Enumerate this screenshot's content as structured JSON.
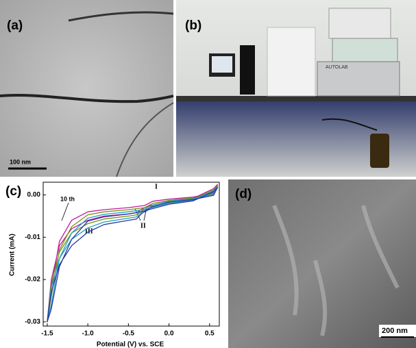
{
  "panels": {
    "a": {
      "label": "(a)",
      "scale_bar": "100 nm"
    },
    "b": {
      "label": "(b)",
      "device_label": "AUTOLAB"
    },
    "c": {
      "label": "(c)"
    },
    "d": {
      "label": "(d)",
      "scale_bar": "200 nm"
    }
  },
  "chart_data": {
    "type": "line",
    "x_label": "Potential (V) vs. SCE",
    "y_label": "Current (mA)",
    "annotations": [
      "10 th",
      "I",
      "II",
      "III"
    ],
    "x": [
      0.6,
      0.55,
      0.3,
      0,
      -0.2,
      -0.3,
      -0.5,
      -0.8,
      -1.0,
      -1.2,
      -1.35,
      -1.45,
      -1.5,
      -1.45,
      -1.35,
      -1.2,
      -1.0,
      -0.8,
      -0.5,
      -0.4,
      -0.33,
      -0.25,
      0,
      0.3,
      0.55,
      0.6
    ],
    "series": [
      {
        "color": "#c0189c",
        "values": [
          0.0025,
          0.0005,
          -0.0005,
          -0.001,
          -0.0015,
          -0.0025,
          -0.003,
          -0.0035,
          -0.004,
          -0.006,
          -0.011,
          -0.022,
          -0.03,
          -0.02,
          -0.012,
          -0.008,
          -0.006,
          -0.005,
          -0.0045,
          -0.0042,
          -0.0033,
          -0.0026,
          -0.0015,
          -0.0008,
          0.0015,
          0.0025
        ]
      },
      {
        "color": "#7a8c10",
        "values": [
          0.0022,
          0.0003,
          -0.0007,
          -0.0013,
          -0.002,
          -0.003,
          -0.0035,
          -0.004,
          -0.0047,
          -0.0075,
          -0.013,
          -0.024,
          -0.03,
          -0.021,
          -0.0135,
          -0.009,
          -0.0068,
          -0.0057,
          -0.005,
          -0.0047,
          -0.0037,
          -0.0029,
          -0.0018,
          -0.001,
          0.0012,
          0.0022
        ]
      },
      {
        "color": "#1aa0c0",
        "values": [
          0.002,
          0.0001,
          -0.0009,
          -0.0015,
          -0.0024,
          -0.0034,
          -0.004,
          -0.0046,
          -0.0055,
          -0.009,
          -0.015,
          -0.026,
          -0.03,
          -0.022,
          -0.015,
          -0.0105,
          -0.0078,
          -0.0064,
          -0.0055,
          -0.0052,
          -0.004,
          -0.0032,
          -0.002,
          -0.0012,
          0.001,
          0.002
        ]
      },
      {
        "color": "#2a3aa8",
        "values": [
          0.0018,
          -0.0001,
          -0.0011,
          -0.0017,
          -0.0028,
          -0.0038,
          -0.0045,
          -0.0052,
          -0.0062,
          -0.0105,
          -0.017,
          -0.027,
          -0.03,
          -0.023,
          -0.0165,
          -0.012,
          -0.0088,
          -0.007,
          -0.006,
          -0.0057,
          -0.0043,
          -0.0035,
          -0.0022,
          -0.0014,
          0.0008,
          0.0018
        ]
      }
    ],
    "xlim": [
      -1.55,
      0.62
    ],
    "ylim": [
      -0.031,
      0.003
    ],
    "xticks": [
      -1.5,
      {
        "value": -1,
        "label": "-1.0"
      },
      -0.5,
      {
        "value": 0,
        "label": "0.0"
      },
      0.5
    ],
    "yticks": [
      {
        "value": 0,
        "label": "0.00"
      },
      -0.01,
      -0.02,
      -0.03
    ]
  }
}
